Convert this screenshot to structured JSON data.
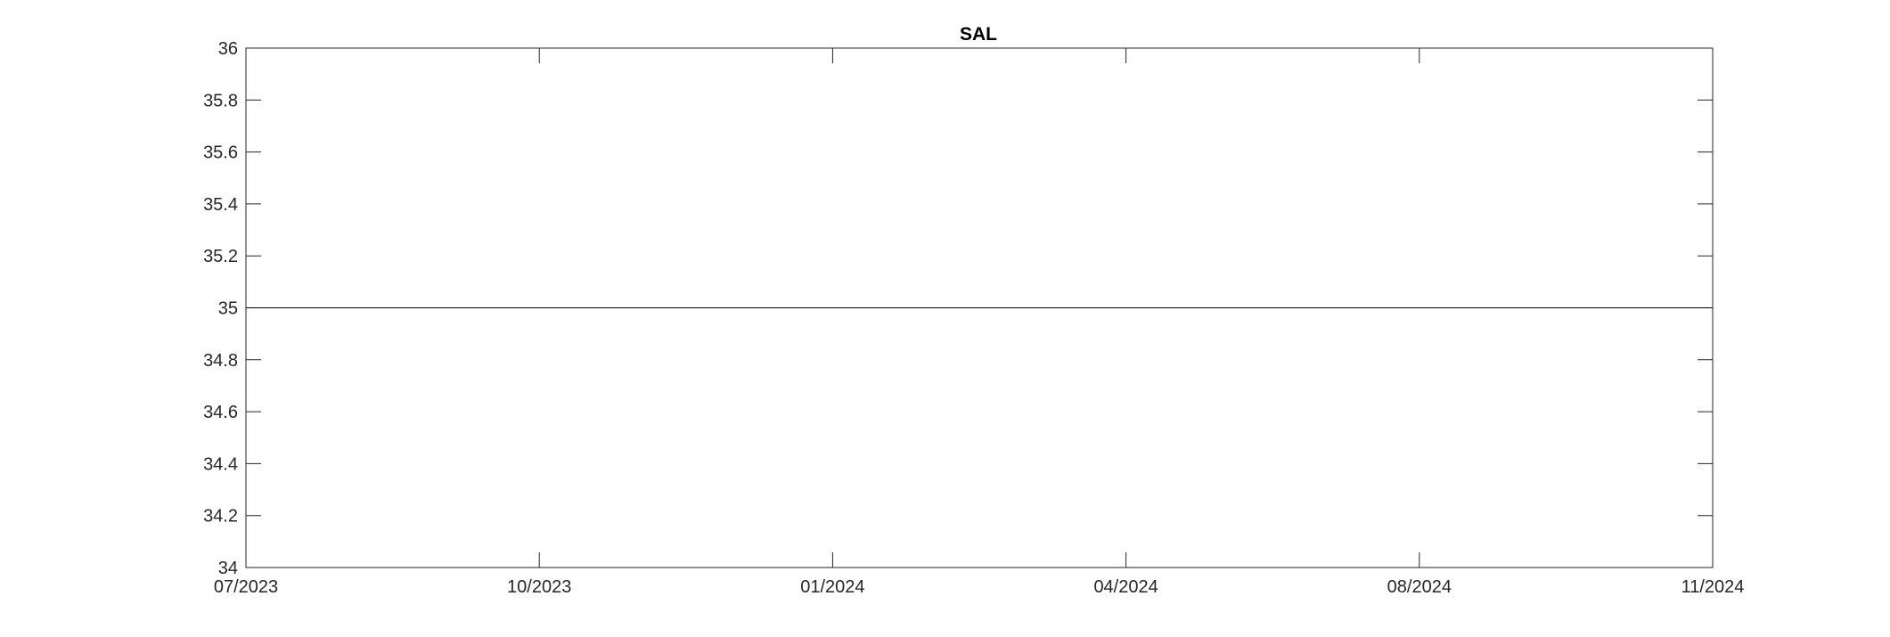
{
  "chart_data": {
    "type": "line",
    "title": "SAL",
    "xlabel": "",
    "ylabel": "",
    "x_ticks": [
      "07/2023",
      "10/2023",
      "01/2024",
      "04/2024",
      "08/2024",
      "11/2024"
    ],
    "y_ticks": [
      34,
      34.2,
      34.4,
      34.6,
      34.8,
      35,
      35.2,
      35.4,
      35.6,
      35.8,
      36
    ],
    "y_tick_labels": [
      "34",
      "34.2",
      "34.4",
      "34.6",
      "34.8",
      "35",
      "35.2",
      "35.4",
      "35.6",
      "35.8",
      "36"
    ],
    "ylim": [
      34,
      36
    ],
    "grid": false,
    "series": [
      {
        "x": [
          "07/2023",
          "11/2024"
        ],
        "values": [
          35,
          35
        ]
      }
    ],
    "colors": {
      "axis": "#262626",
      "line": "#000000",
      "background": "#ffffff"
    }
  }
}
